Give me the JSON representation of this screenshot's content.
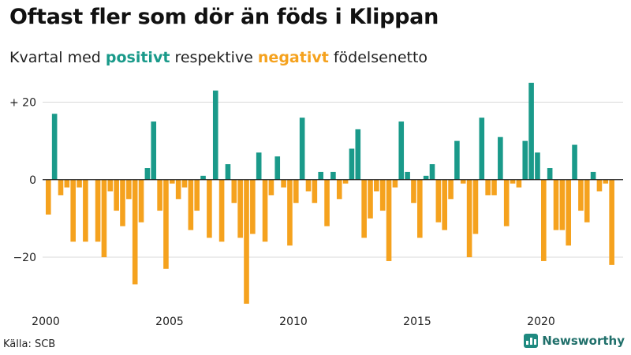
{
  "title": "Oftast fler som dör än föds i Klippan",
  "subtitle": {
    "prefix": "Kvartal med ",
    "positive_word": "positivt",
    "middle": " respektive ",
    "negative_word": "negativt",
    "suffix": " födelsenetto"
  },
  "source": "Källa: SCB",
  "brand": "Newsworthy",
  "colors": {
    "positive": "#1a9a8a",
    "negative": "#f5a21e",
    "grid": "#d9d9d9",
    "zero": "#222222"
  },
  "chart_data": {
    "type": "bar",
    "title": "Oftast fler som dör än föds i Klippan",
    "xlabel": "",
    "ylabel": "",
    "ylim": [
      -32,
      26
    ],
    "yticks": [
      20,
      0,
      -20
    ],
    "ytick_labels": [
      "+ 20",
      "0",
      "−20"
    ],
    "xticks": [
      2000,
      2005,
      2010,
      2015,
      2020
    ],
    "xtick_labels": [
      "2000",
      "2005",
      "2010",
      "2015",
      "2020"
    ],
    "start_year": 2000,
    "grid": true,
    "values": [
      -9,
      17,
      -4,
      -2,
      -16,
      -2,
      -16,
      0,
      -16,
      -20,
      -3,
      -8,
      -12,
      -5,
      -27,
      -11,
      3,
      15,
      -8,
      -23,
      -1,
      -5,
      -2,
      -13,
      -8,
      1,
      -15,
      23,
      -16,
      4,
      -6,
      -15,
      -32,
      -14,
      7,
      -16,
      -4,
      6,
      -2,
      -17,
      -6,
      16,
      -3,
      -6,
      2,
      -12,
      2,
      -5,
      -1,
      8,
      13,
      -15,
      -10,
      -3,
      -8,
      -21,
      -2,
      15,
      2,
      -6,
      -15,
      1,
      4,
      -11,
      -13,
      -5,
      10,
      -1,
      -20,
      -14,
      16,
      -4,
      -4,
      11,
      -12,
      -1,
      -2,
      10,
      25,
      7,
      -21,
      3,
      -13,
      -13,
      -17,
      9,
      -8,
      -11,
      2,
      -3,
      -1,
      -22
    ]
  }
}
